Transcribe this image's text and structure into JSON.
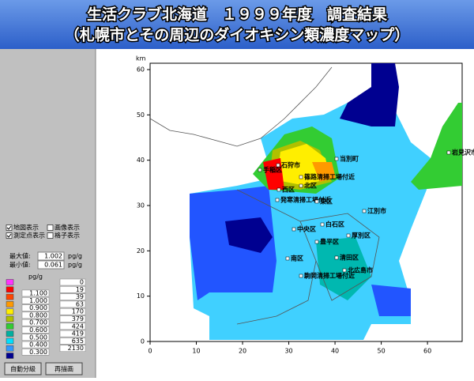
{
  "title": {
    "line1": "生活クラブ北海道　１９９９年度　調査結果",
    "line2": "（札幌市とその周辺のダイオキシン類濃度マップ）"
  },
  "panel": {
    "checkboxes": [
      {
        "label": "地図表示",
        "checked": true
      },
      {
        "label": "画像表示",
        "checked": false
      },
      {
        "label": "測定点表示",
        "checked": true
      },
      {
        "label": "格子表示",
        "checked": false
      }
    ],
    "max": {
      "label": "最大値:",
      "value": "1.002",
      "unit": "pg/g"
    },
    "min": {
      "label": "最小値:",
      "value": "0.061",
      "unit": "pg/g"
    },
    "legend": {
      "unit": "pg/g",
      "colors": [
        "#ff33ff",
        "#ff0000",
        "#ff4400",
        "#ff9900",
        "#ffee00",
        "#b0c000",
        "#33cc33",
        "#00b0a0",
        "#00e0ff",
        "#3399ff",
        "#000090"
      ],
      "levels": [
        "1.100",
        "1.000",
        "0.900",
        "0.800",
        "0.700",
        "0.600",
        "0.500",
        "0.400",
        "0.300"
      ],
      "counts": [
        0,
        19,
        39,
        63,
        170,
        379,
        424,
        419,
        635,
        2130
      ]
    },
    "buttons": [
      "自動分級",
      "再描画"
    ]
  },
  "map": {
    "y_unit": "km",
    "xlim": [
      0,
      67.5
    ],
    "ylim": [
      0,
      61.4
    ],
    "xticks": [
      0,
      10,
      20,
      30,
      40,
      50,
      60
    ],
    "yticks": [
      0,
      10,
      20,
      30,
      40,
      50,
      60
    ],
    "places": [
      "石狩市",
      "当別町",
      "北区",
      "東区",
      "発寒清掃工場付近",
      "篠路清掃工場付近",
      "江別市",
      "白石区",
      "厚別区",
      "中央区",
      "豊平区",
      "清田区",
      "南区",
      "北広島市",
      "駒岡清掃工場付近",
      "岩見沢市",
      "西区",
      "手稲区"
    ]
  }
}
